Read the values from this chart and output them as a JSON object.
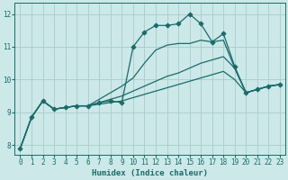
{
  "xlabel": "Humidex (Indice chaleur)",
  "bg_color": "#cce8e8",
  "grid_color": "#aacccc",
  "line_color": "#1a6b6b",
  "xlim": [
    -0.5,
    23.5
  ],
  "ylim": [
    7.7,
    12.35
  ],
  "xticks": [
    0,
    1,
    2,
    3,
    4,
    5,
    6,
    7,
    8,
    9,
    10,
    11,
    12,
    13,
    14,
    15,
    16,
    17,
    18,
    19,
    20,
    21,
    22,
    23
  ],
  "yticks": [
    8,
    9,
    10,
    11,
    12
  ],
  "series": [
    {
      "x": [
        0,
        1,
        2,
        3,
        4,
        5,
        6,
        7,
        8,
        9,
        10,
        11,
        12,
        13,
        14,
        15,
        16,
        17,
        18,
        19,
        20,
        21,
        22,
        23
      ],
      "y": [
        7.9,
        8.85,
        9.35,
        9.1,
        9.15,
        9.2,
        9.2,
        9.3,
        9.35,
        9.3,
        11.0,
        11.45,
        11.65,
        11.65,
        11.7,
        12.0,
        11.7,
        11.15,
        11.4,
        10.4,
        9.6,
        9.7,
        9.8,
        9.85
      ],
      "marker": "D",
      "markersize": 2.5,
      "lw": 0.9
    },
    {
      "x": [
        0,
        1,
        2,
        3,
        4,
        5,
        6,
        7,
        8,
        9,
        10,
        11,
        12,
        13,
        14,
        15,
        16,
        17,
        18,
        19,
        20,
        21,
        22,
        23
      ],
      "y": [
        7.9,
        8.85,
        9.35,
        9.1,
        9.15,
        9.2,
        9.2,
        9.4,
        9.6,
        9.8,
        10.05,
        10.5,
        10.9,
        11.05,
        11.1,
        11.1,
        11.2,
        11.15,
        11.2,
        10.35,
        9.6,
        9.7,
        9.8,
        9.85
      ],
      "marker": null,
      "lw": 0.9
    },
    {
      "x": [
        0,
        1,
        2,
        3,
        4,
        5,
        6,
        7,
        8,
        9,
        10,
        11,
        12,
        13,
        14,
        15,
        16,
        17,
        18,
        19,
        20,
        21,
        22,
        23
      ],
      "y": [
        7.9,
        8.85,
        9.35,
        9.1,
        9.15,
        9.2,
        9.2,
        9.3,
        9.4,
        9.5,
        9.65,
        9.8,
        9.95,
        10.1,
        10.2,
        10.35,
        10.5,
        10.6,
        10.7,
        10.35,
        9.6,
        9.7,
        9.8,
        9.85
      ],
      "marker": null,
      "lw": 0.9
    },
    {
      "x": [
        0,
        1,
        2,
        3,
        4,
        5,
        6,
        7,
        8,
        9,
        10,
        11,
        12,
        13,
        14,
        15,
        16,
        17,
        18,
        19,
        20,
        21,
        22,
        23
      ],
      "y": [
        7.9,
        8.85,
        9.35,
        9.1,
        9.15,
        9.2,
        9.2,
        9.25,
        9.3,
        9.35,
        9.45,
        9.55,
        9.65,
        9.75,
        9.85,
        9.95,
        10.05,
        10.15,
        10.25,
        10.0,
        9.6,
        9.7,
        9.8,
        9.85
      ],
      "marker": null,
      "lw": 0.9
    }
  ]
}
